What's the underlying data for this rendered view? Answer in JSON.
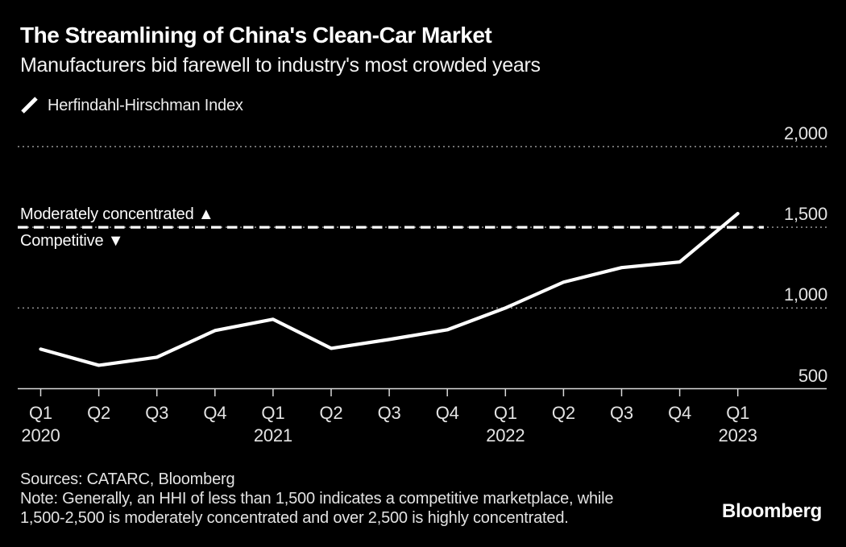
{
  "header": {
    "title": "The Streamlining of China's Clean-Car Market",
    "subtitle": "Manufacturers bid farewell to industry's most crowded years"
  },
  "legend": {
    "icon": "line-swatch-icon",
    "label": "Herfindahl-Hirschman Index"
  },
  "chart_data": {
    "type": "line",
    "title": "The Streamlining of China's Clean-Car Market",
    "subtitle": "Manufacturers bid farewell to industry's most crowded years",
    "legend_position": "top-left",
    "grid": "horizontal-dotted",
    "x_tick_labels": [
      {
        "quarter": "Q1",
        "year": "2020"
      },
      {
        "quarter": "Q2"
      },
      {
        "quarter": "Q3"
      },
      {
        "quarter": "Q4"
      },
      {
        "quarter": "Q1",
        "year": "2021"
      },
      {
        "quarter": "Q2"
      },
      {
        "quarter": "Q3"
      },
      {
        "quarter": "Q4"
      },
      {
        "quarter": "Q1",
        "year": "2022"
      },
      {
        "quarter": "Q2"
      },
      {
        "quarter": "Q3"
      },
      {
        "quarter": "Q4"
      },
      {
        "quarter": "Q1",
        "year": "2023"
      }
    ],
    "series": [
      {
        "name": "Herfindahl-Hirschman Index",
        "values": [
          745,
          645,
          695,
          860,
          930,
          750,
          805,
          865,
          1000,
          1160,
          1250,
          1285,
          1585
        ]
      }
    ],
    "ylim": [
      500,
      2000
    ],
    "yticks": [
      {
        "value": 500,
        "label": "500"
      },
      {
        "value": 1000,
        "label": "1,000"
      },
      {
        "value": 1500,
        "label": "1,500"
      },
      {
        "value": 2000,
        "label": "2,000"
      }
    ],
    "threshold_line": {
      "value": 1500,
      "style": "dashed-white",
      "label_above": "Moderately concentrated ▲",
      "label_below": "Competitive ▼"
    }
  },
  "footer": {
    "sources": "Sources: CATARC, Bloomberg",
    "note_lines": [
      "Note: Generally, an HHI of less than 1,500 indicates a competitive marketplace, while",
      "1,500-2,500 is moderately concentrated and over 2,500 is highly concentrated."
    ],
    "brand": "Bloomberg"
  },
  "colors": {
    "background": "#000000",
    "data_line": "#ffffff",
    "grid_line": "#8a8a8a",
    "axis_line": "#d9d9d9",
    "threshold_line": "#ffffff",
    "text_primary": "#ffffff",
    "text_secondary": "#e3e3e3"
  }
}
